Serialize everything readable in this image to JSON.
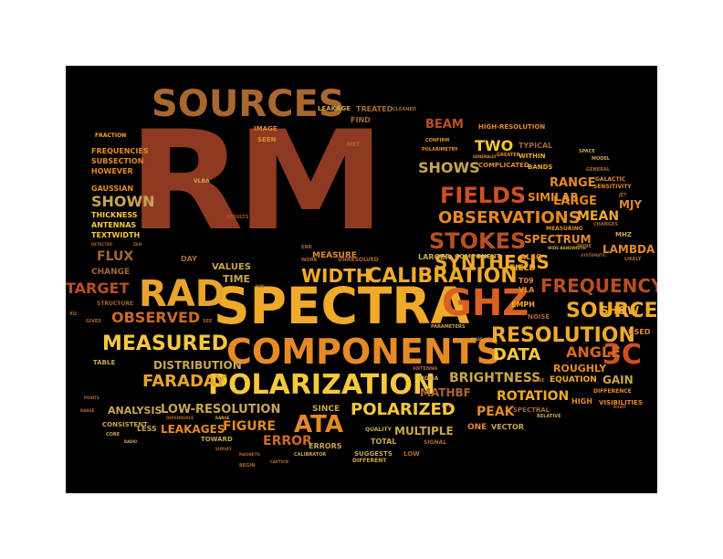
{
  "colors": {
    "background": "#000000",
    "page": "#ffffff",
    "palette": [
      "#8e3a22",
      "#b84f25",
      "#cf6a26",
      "#e58a25",
      "#f0aa2a",
      "#f6c83c",
      "#a8672f",
      "#c9a64e"
    ]
  },
  "words": [
    {
      "text": "RM",
      "color": "#8e3a22"
    },
    {
      "text": "SPECTRA",
      "color": "#f0aa2a"
    },
    {
      "text": "SOURCES",
      "color": "#a8672f"
    },
    {
      "text": "COMPONENTS",
      "color": "#e58a25"
    },
    {
      "text": "POLARIZATION",
      "color": "#f6c83c"
    },
    {
      "text": "GHZ",
      "color": "#d9611f"
    },
    {
      "text": "RAD",
      "color": "#e9a52b"
    },
    {
      "text": "FREQUENCY",
      "color": "#b84f25"
    },
    {
      "text": "RESOLUTION",
      "color": "#f0aa2a"
    },
    {
      "text": "CALIBRATION",
      "color": "#f0aa2a"
    },
    {
      "text": "FIELDS",
      "color": "#cf4e20"
    },
    {
      "text": "STOKES",
      "color": "#b84f25"
    },
    {
      "text": "OBSERVATIONS",
      "color": "#e58a25"
    },
    {
      "text": "MEASURED",
      "color": "#f6c83c"
    },
    {
      "text": "SOURCE",
      "color": "#f0aa2a"
    },
    {
      "text": "3C",
      "color": "#cf4e20"
    },
    {
      "text": "FARADAY",
      "color": "#e9a52b"
    },
    {
      "text": "DATA",
      "color": "#f6c83c"
    },
    {
      "text": "ATA",
      "color": "#e58a25"
    },
    {
      "text": "POLARIZED",
      "color": "#f6c83c"
    },
    {
      "text": "SYNTHESIS",
      "color": "#f0aa2a"
    },
    {
      "text": "WIDTH",
      "color": "#f0aa2a"
    },
    {
      "text": "TWO",
      "color": "#f6c83c"
    },
    {
      "text": "SHOWS",
      "color": "#c9a64e"
    },
    {
      "text": "SHOWN",
      "color": "#c9a64e"
    },
    {
      "text": "FLUX",
      "color": "#a8672f"
    },
    {
      "text": "TARGET",
      "color": "#b84f25"
    },
    {
      "text": "OBSERVED",
      "color": "#cf6a26"
    },
    {
      "text": "DISTRIBUTION",
      "color": "#c9a64e"
    },
    {
      "text": "LOW-RESOLUTION",
      "color": "#c9a64e"
    },
    {
      "text": "FIGURE",
      "color": "#e58a25"
    },
    {
      "text": "ERROR",
      "color": "#cf6a26"
    },
    {
      "text": "ROTATION",
      "color": "#f0aa2a"
    },
    {
      "text": "BRIGHTNESS",
      "color": "#c9a64e"
    },
    {
      "text": "ANGLE",
      "color": "#cf6a26"
    },
    {
      "text": "PEAK",
      "color": "#e58a25"
    },
    {
      "text": "MEAN",
      "color": "#f0aa2a"
    },
    {
      "text": "SHOW",
      "color": "#f0aa2a"
    },
    {
      "text": "LAMBDA",
      "color": "#e58a25"
    },
    {
      "text": "BEAM",
      "color": "#b84f25"
    },
    {
      "text": "RANGE",
      "color": "#e58a25"
    },
    {
      "text": "LARGE",
      "color": "#e58a25"
    },
    {
      "text": "SIMILAR",
      "color": "#e58a25"
    },
    {
      "text": "SPECTRUM",
      "color": "#e58a25"
    },
    {
      "text": "MJY",
      "color": "#e58a25"
    },
    {
      "text": "GAIN",
      "color": "#c9a64e"
    },
    {
      "text": "MATHBF",
      "color": "#a8672f"
    },
    {
      "text": "MULTIPLE",
      "color": "#c9a64e"
    },
    {
      "text": "LEAKAGES",
      "color": "#e58a25"
    },
    {
      "text": "ANALYSIS",
      "color": "#c9a64e"
    },
    {
      "text": "THICKNESS",
      "color": "#f6c83c"
    },
    {
      "text": "ANTENNAS",
      "color": "#f6c83c"
    },
    {
      "text": "TEXTWIDTH",
      "color": "#f6c83c"
    },
    {
      "text": "FREQUENCIES",
      "color": "#e58a25"
    },
    {
      "text": "SUBSECTION",
      "color": "#e58a25"
    },
    {
      "text": "HOWEVER",
      "color": "#e58a25"
    },
    {
      "text": "GAUSSIAN",
      "color": "#e58a25"
    },
    {
      "text": "FRACTION",
      "color": "#f0aa2a"
    },
    {
      "text": "CHANGE",
      "color": "#a8672f"
    },
    {
      "text": "VALUES",
      "color": "#c9a64e"
    },
    {
      "text": "TIME",
      "color": "#c9a64e"
    },
    {
      "text": "DAY",
      "color": "#a8672f"
    },
    {
      "text": "MEASURE",
      "color": "#e58a25"
    },
    {
      "text": "LARGER",
      "color": "#c9a64e"
    },
    {
      "text": "COMPONENT",
      "color": "#c9a64e"
    },
    {
      "text": "FIELD",
      "color": "#f0aa2a"
    },
    {
      "text": "ALSO",
      "color": "#e58a25"
    },
    {
      "text": "EMPH",
      "color": "#f0aa2a"
    },
    {
      "text": "T09",
      "color": "#e58a25"
    },
    {
      "text": "VLA",
      "color": "#e58a25"
    },
    {
      "text": "NOISE",
      "color": "#a8672f"
    },
    {
      "text": "USED",
      "color": "#e58a25"
    },
    {
      "text": "ROUGHLY",
      "color": "#e58a25"
    },
    {
      "text": "EQUATION",
      "color": "#f0aa2a"
    },
    {
      "text": "HIGH",
      "color": "#e58a25"
    },
    {
      "text": "VISIBILITIES",
      "color": "#e58a25"
    },
    {
      "text": "DIFFERENCE",
      "color": "#e58a25"
    },
    {
      "text": "SINCE",
      "color": "#c9a64e"
    },
    {
      "text": "ONE",
      "color": "#e58a25"
    },
    {
      "text": "VECTOR",
      "color": "#c9a64e"
    },
    {
      "text": "SPECTRAL",
      "color": "#a8672f"
    },
    {
      "text": "TOTAL",
      "color": "#c9a64e"
    },
    {
      "text": "ERRORS",
      "color": "#c9a64e"
    },
    {
      "text": "SIGNAL",
      "color": "#a8672f"
    },
    {
      "text": "LOW",
      "color": "#a8672f"
    },
    {
      "text": "SUGGESTS",
      "color": "#c9a64e"
    },
    {
      "text": "DIFFERENT",
      "color": "#c9a64e"
    },
    {
      "text": "QUALITY",
      "color": "#c9a64e"
    },
    {
      "text": "CALIBRATOR",
      "color": "#c9a64e"
    },
    {
      "text": "TOWARD",
      "color": "#c9a64e"
    },
    {
      "text": "LESS",
      "color": "#c9a64e"
    },
    {
      "text": "CONSISTENT",
      "color": "#c9a64e"
    },
    {
      "text": "TABLE",
      "color": "#c9a64e"
    },
    {
      "text": "CORE",
      "color": "#c9a64e"
    },
    {
      "text": "RADIO",
      "color": "#c9a64e"
    },
    {
      "text": "POINTS",
      "color": "#a8672f"
    },
    {
      "text": "RANGE",
      "color": "#a8672f"
    },
    {
      "text": "STRUCTURE",
      "color": "#a8672f"
    },
    {
      "text": "GIVES",
      "color": "#a8672f"
    },
    {
      "text": "XU",
      "color": "#a8672f"
    },
    {
      "text": "SEE",
      "color": "#a8672f"
    },
    {
      "text": "FIND",
      "color": "#a8672f"
    },
    {
      "text": "IMAGE",
      "color": "#e58a25"
    },
    {
      "text": "SEEN",
      "color": "#e58a25"
    },
    {
      "text": "MET",
      "color": "#a8672f"
    },
    {
      "text": "LEAKAGE",
      "color": "#c9a64e"
    },
    {
      "text": "TREATED",
      "color": "#a8672f"
    },
    {
      "text": "CLEANED",
      "color": "#a8672f"
    },
    {
      "text": "CONFIRM",
      "color": "#e58a25"
    },
    {
      "text": "POLARIMETRY",
      "color": "#e58a25"
    },
    {
      "text": "GENERALLY",
      "color": "#e58a25"
    },
    {
      "text": "GREATER",
      "color": "#e58a25"
    },
    {
      "text": "COMPLICATED",
      "color": "#e58a25"
    },
    {
      "text": "TYPICAL",
      "color": "#a8672f"
    },
    {
      "text": "HIGH-RESOLUTION",
      "color": "#e58a25"
    },
    {
      "text": "BANDS",
      "color": "#f0aa2a"
    },
    {
      "text": "WITHIN",
      "color": "#f0aa2a"
    },
    {
      "text": "SPACE",
      "color": "#c9a64e"
    },
    {
      "text": "MODEL",
      "color": "#c9a64e"
    },
    {
      "text": "GENERAL",
      "color": "#a8672f"
    },
    {
      "text": "GALACTIC",
      "color": "#e58a25"
    },
    {
      "text": "SENSITIVITY",
      "color": "#e58a25"
    },
    {
      "text": "JET",
      "color": "#a8672f"
    },
    {
      "text": "CHANGES",
      "color": "#a8672f"
    },
    {
      "text": "MHZ",
      "color": "#c9a64e"
    },
    {
      "text": "MEASURING",
      "color": "#e58a25"
    },
    {
      "text": "WIDE-BANDWIDTH",
      "color": "#c9a64e"
    },
    {
      "text": "DONE",
      "color": "#a8672f"
    },
    {
      "text": "LIKELY",
      "color": "#a8672f"
    },
    {
      "text": "SYSTEMATIC",
      "color": "#a8672f"
    },
    {
      "text": "VLBA",
      "color": "#c9a64e"
    },
    {
      "text": "RESULTS",
      "color": "#b84f25"
    },
    {
      "text": "END",
      "color": "#a8672f"
    },
    {
      "text": "WORK",
      "color": "#a8672f"
    },
    {
      "text": "UNRESOLVED",
      "color": "#a8672f"
    },
    {
      "text": "FOR",
      "color": "#a8672f"
    },
    {
      "text": "DETECTED",
      "color": "#a8672f"
    },
    {
      "text": "ZEN",
      "color": "#a8672f"
    },
    {
      "text": "PARAMETERS",
      "color": "#c9a64e"
    },
    {
      "text": "MASS",
      "color": "#c9a64e"
    },
    {
      "text": "ANTENNA",
      "color": "#a8672f"
    },
    {
      "text": "SIGMA",
      "color": "#c9a64e"
    },
    {
      "text": "LINE",
      "color": "#a8672f"
    },
    {
      "text": "RELATIVE",
      "color": "#c9a64e"
    },
    {
      "text": "I--2",
      "color": "#c9a64e"
    },
    {
      "text": "DEPENDENCE",
      "color": "#a8672f"
    },
    {
      "text": "RANGE",
      "color": "#c9a64e"
    },
    {
      "text": "SURVEY",
      "color": "#a8672f"
    },
    {
      "text": "MAGNETIC",
      "color": "#a8672f"
    },
    {
      "text": "BEGIN",
      "color": "#a8672f"
    },
    {
      "text": "CAPTION",
      "color": "#a8672f"
    },
    {
      "text": "RIGHT",
      "color": "#a8672f"
    }
  ]
}
